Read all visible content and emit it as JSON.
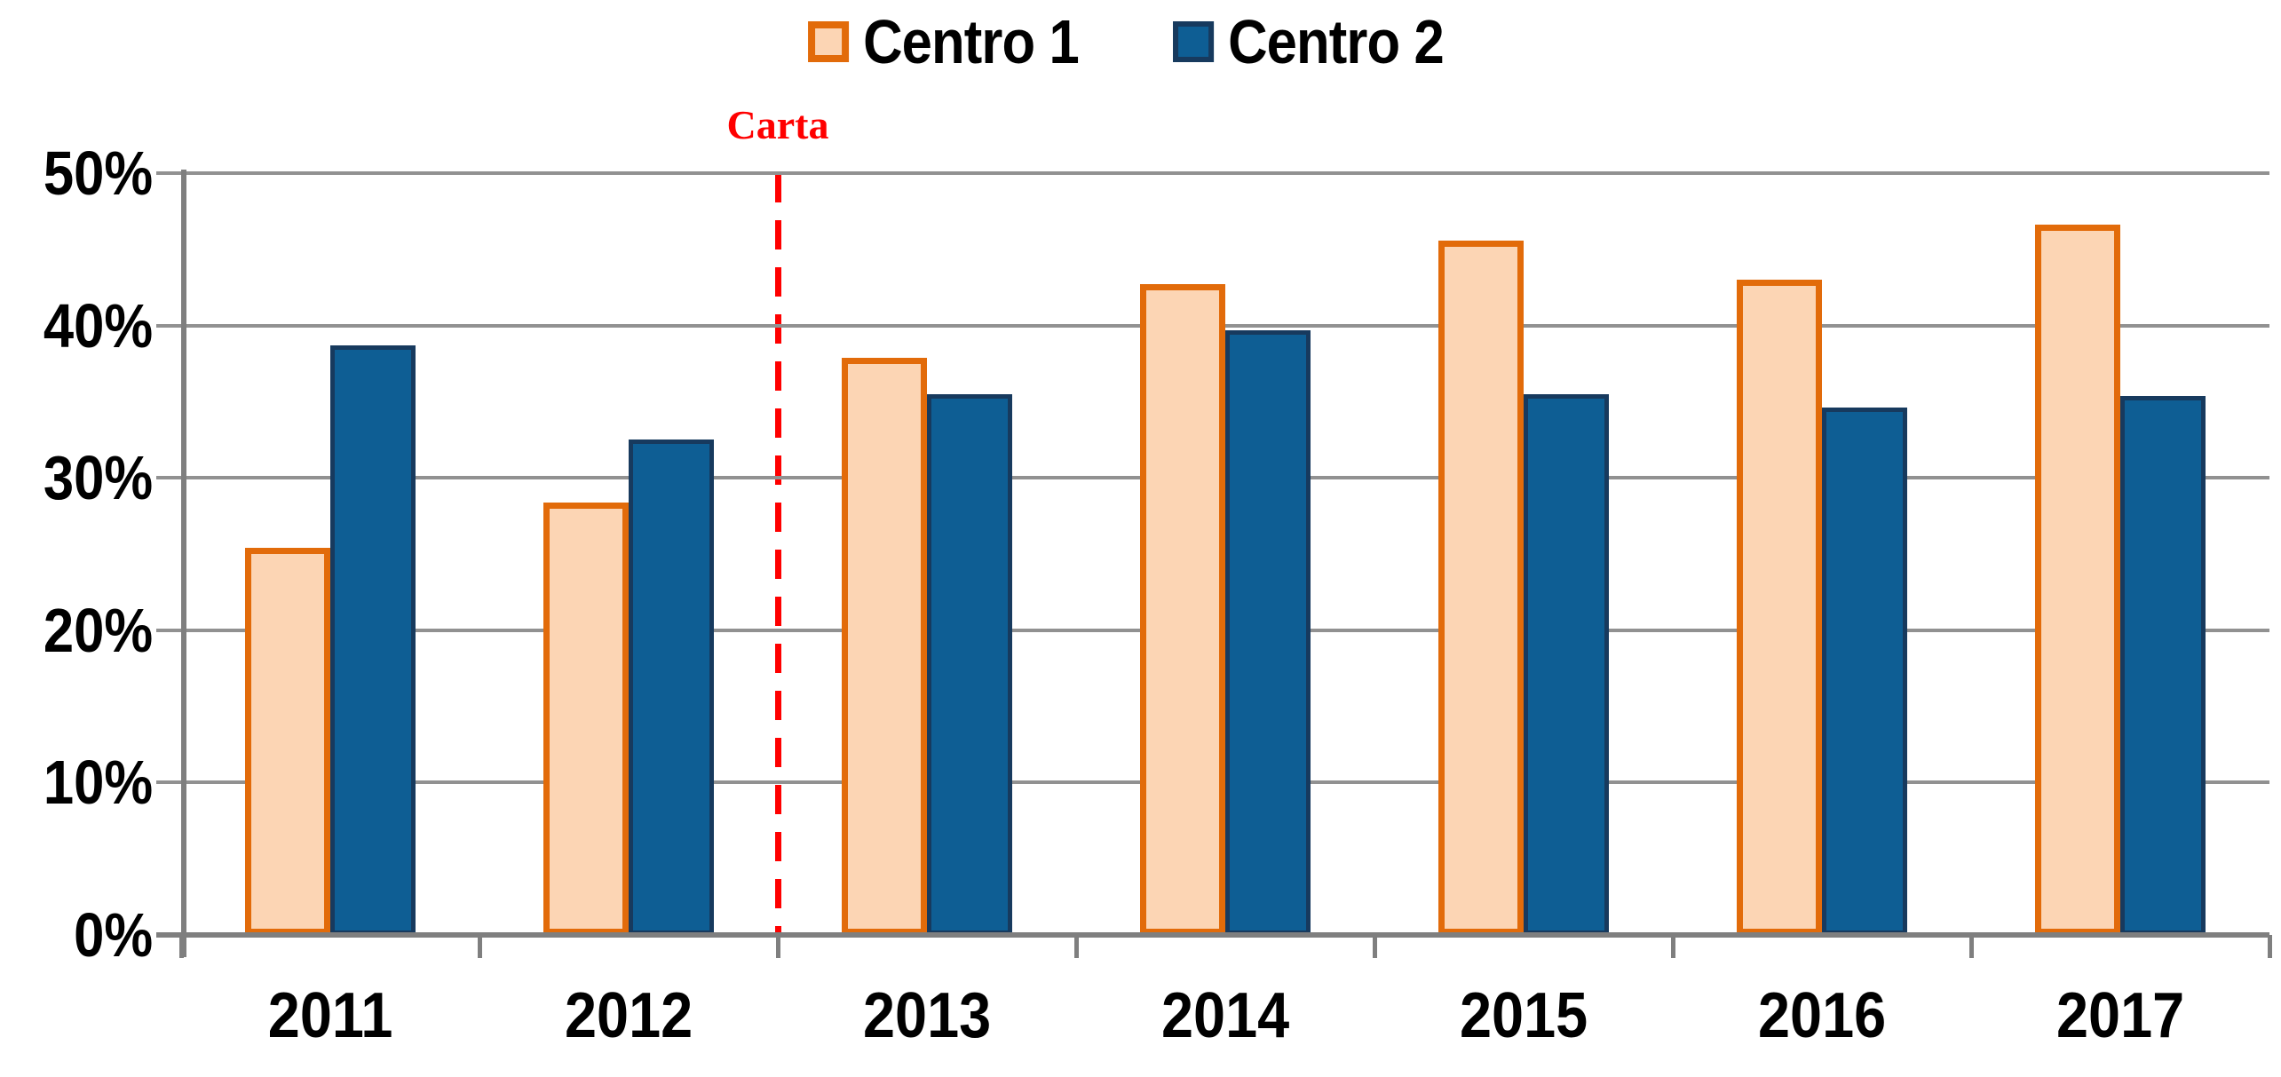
{
  "chart_data": {
    "type": "bar",
    "categories": [
      "2011",
      "2012",
      "2013",
      "2014",
      "2015",
      "2016",
      "2017"
    ],
    "series": [
      {
        "name": "Centro 1",
        "fill": "#FCD5B4",
        "border": "#E26B0A",
        "values": [
          25.4,
          28.4,
          37.9,
          42.7,
          45.6,
          43.0,
          46.6
        ]
      },
      {
        "name": "Centro 2",
        "fill": "#0E5E94",
        "border": "#173A5E",
        "values": [
          38.7,
          32.5,
          35.5,
          39.7,
          35.5,
          34.6,
          35.4
        ]
      }
    ],
    "title": "",
    "xlabel": "",
    "ylabel": "",
    "ylim": [
      0,
      50
    ],
    "ytick_step": 10,
    "ytick_labels": [
      "0%",
      "10%",
      "20%",
      "30%",
      "40%",
      "50%"
    ],
    "grid": true,
    "legend_position": "top-center",
    "annotation": {
      "label": "Carta",
      "color": "#FF0000",
      "position": "between 2012 and 2013",
      "style": "dashed-vertical-line"
    }
  }
}
